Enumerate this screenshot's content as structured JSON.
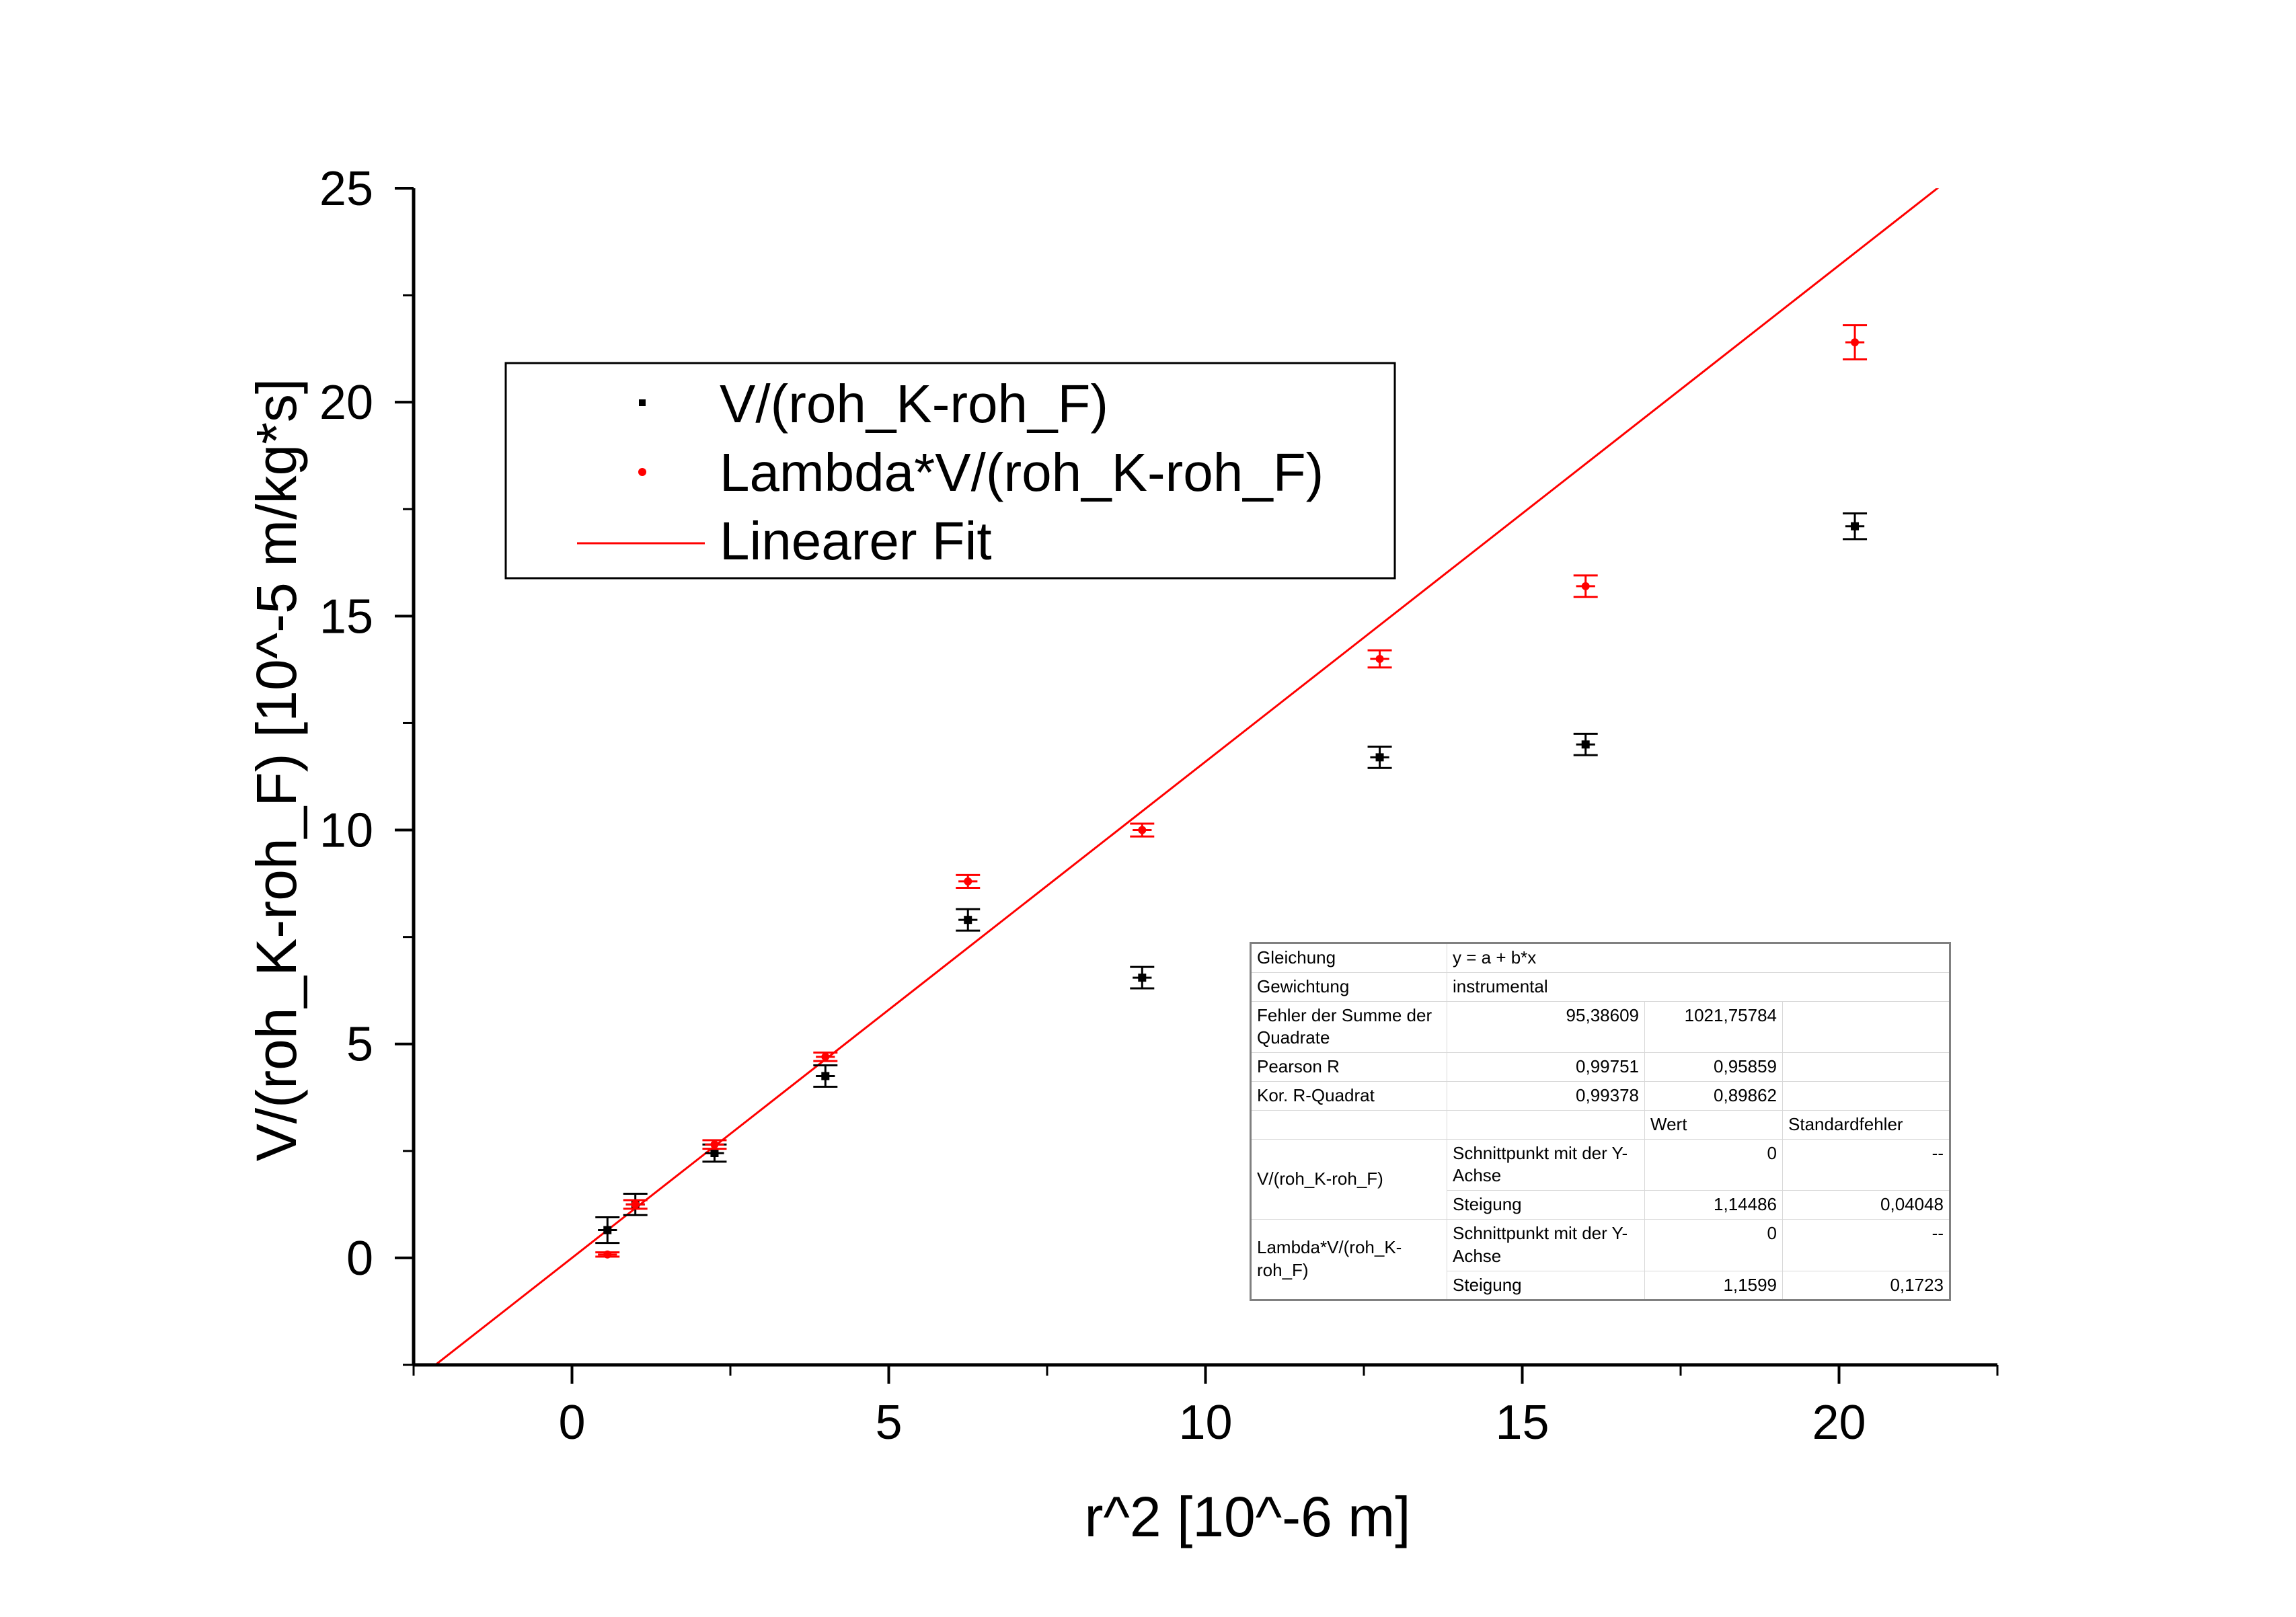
{
  "chart_data": {
    "type": "scatter",
    "xlabel": "r^2 [10^-6 m]",
    "ylabel": "V/(roh_K-roh_F) [10^-5 m/kg*s]",
    "xlim": [
      -2.5,
      22.5
    ],
    "ylim": [
      -2.5,
      25
    ],
    "xticks": [
      0,
      5,
      10,
      15,
      20
    ],
    "yticks": [
      0,
      5,
      10,
      15,
      20,
      25
    ],
    "grid": false,
    "legend_position": "upper-left",
    "colors": {
      "series1": "#000000",
      "series2": "#ff0000",
      "fit": "#ff0000"
    },
    "series": [
      {
        "name": "V/(roh_K-roh_F)",
        "marker": "square",
        "points": [
          {
            "x": 0.56,
            "y": 0.65,
            "ey": 0.3,
            "ex": 0.15
          },
          {
            "x": 1.0,
            "y": 1.25,
            "ey": 0.25,
            "ex": 0.15
          },
          {
            "x": 2.25,
            "y": 2.45,
            "ey": 0.2,
            "ex": 0.15
          },
          {
            "x": 4.0,
            "y": 4.25,
            "ey": 0.25,
            "ex": 0.15
          },
          {
            "x": 6.25,
            "y": 7.9,
            "ey": 0.25,
            "ex": 0.15
          },
          {
            "x": 9.0,
            "y": 6.55,
            "ey": 0.25,
            "ex": 0.15
          },
          {
            "x": 12.75,
            "y": 11.7,
            "ey": 0.25,
            "ex": 0.15
          },
          {
            "x": 16.0,
            "y": 12.0,
            "ey": 0.25,
            "ex": 0.15
          },
          {
            "x": 20.25,
            "y": 17.1,
            "ey": 0.3,
            "ex": 0.15
          }
        ]
      },
      {
        "name": "Lambda*V/(roh_K-roh_F)",
        "marker": "circle",
        "points": [
          {
            "x": 0.56,
            "y": 0.08,
            "ey": 0.05,
            "ex": 0.15
          },
          {
            "x": 1.0,
            "y": 1.25,
            "ey": 0.1,
            "ex": 0.15
          },
          {
            "x": 2.25,
            "y": 2.65,
            "ey": 0.1,
            "ex": 0.15
          },
          {
            "x": 4.0,
            "y": 4.7,
            "ey": 0.1,
            "ex": 0.15
          },
          {
            "x": 6.25,
            "y": 8.8,
            "ey": 0.15,
            "ex": 0.15
          },
          {
            "x": 9.0,
            "y": 10.0,
            "ey": 0.15,
            "ex": 0.15
          },
          {
            "x": 12.75,
            "y": 14.0,
            "ey": 0.2,
            "ex": 0.15
          },
          {
            "x": 16.0,
            "y": 15.7,
            "ey": 0.25,
            "ex": 0.15
          },
          {
            "x": 20.25,
            "y": 21.4,
            "ey": 0.4,
            "ex": 0.15
          }
        ]
      }
    ],
    "fit": {
      "name": "Linearer Fit",
      "intercept": 0,
      "slope": 1.1599,
      "x_range": [
        -2.15,
        21.6
      ]
    }
  },
  "legend": {
    "entries": [
      {
        "label": "V/(roh_K-roh_F)",
        "color": "#000000",
        "symbol": "square"
      },
      {
        "label": "Lambda*V/(roh_K-roh_F)",
        "color": "#ff0000",
        "symbol": "circle"
      },
      {
        "label": "Linearer Fit",
        "color": "#ff0000",
        "symbol": "line"
      }
    ]
  },
  "fit_table": {
    "gleichung_label": "Gleichung",
    "gleichung_value": "y = a + b*x",
    "gewichtung_label": "Gewichtung",
    "gewichtung_value": "instrumental",
    "fehler_label": "Fehler der Summe der Quadrate",
    "fehler_1": "95,38609",
    "fehler_2": "1021,75784",
    "pearson_label": "Pearson R",
    "pearson_1": "0,99751",
    "pearson_2": "0,95859",
    "kor_label": "Kor. R-Quadrat",
    "kor_1": "0,99378",
    "kor_2": "0,89862",
    "wert_header": "Wert",
    "standardfehler_header": "Standardfehler",
    "series1_label": "V/(roh_K-roh_F)",
    "series2_label": "Lambda*V/(roh_K-roh_F)",
    "schnittpunkt_label": "Schnittpunkt mit der  Y-Achse",
    "steigung_label": "Steigung",
    "s1_schnitt_wert": "0",
    "s1_schnitt_fehler": "--",
    "s1_steigung_wert": "1,14486",
    "s1_steigung_fehler": "0,04048",
    "s2_schnitt_wert": "0",
    "s2_schnitt_fehler": "--",
    "s2_steigung_wert": "1,1599",
    "s2_steigung_fehler": "0,1723"
  }
}
